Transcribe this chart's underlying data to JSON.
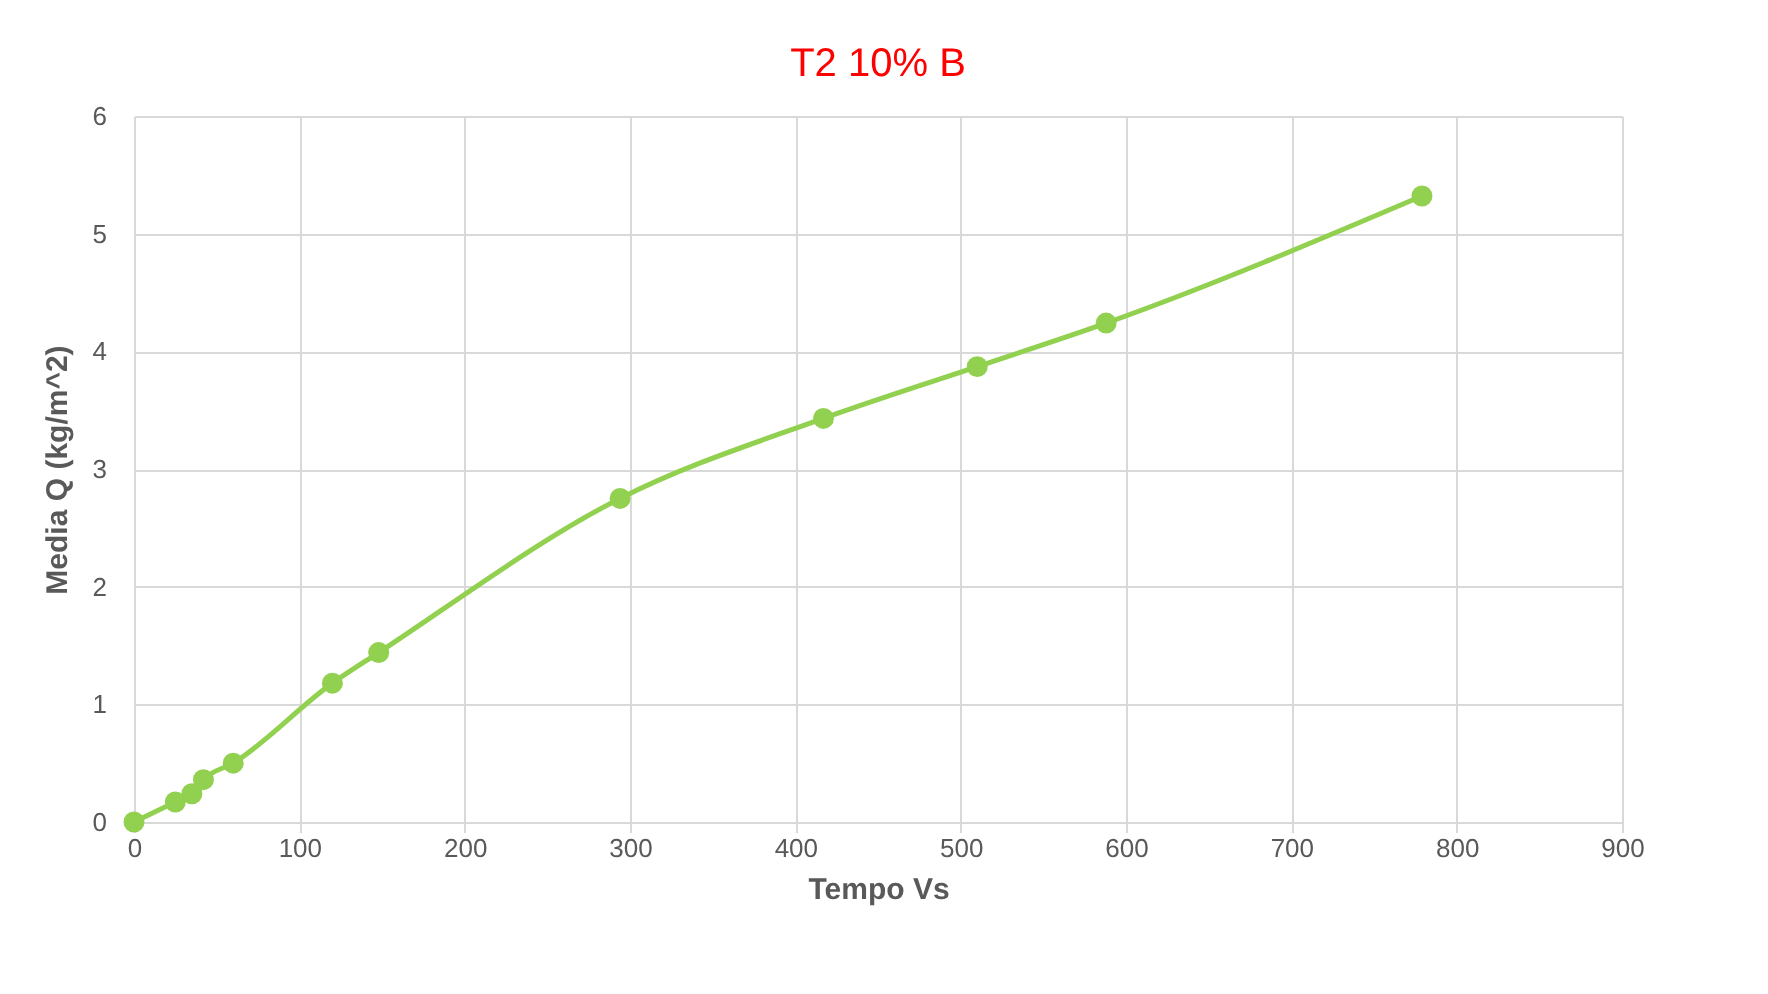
{
  "chart_data": {
    "type": "line",
    "title": "T2 10% B",
    "xlabel": "Tempo Vs",
    "ylabel": "Media Q (kg/m^2)",
    "x": [
      0,
      25,
      35,
      42,
      60,
      120,
      148,
      294,
      417,
      510,
      588,
      779
    ],
    "series": [
      {
        "color": "#92d050",
        "values": [
          0,
          0.17,
          0.24,
          0.36,
          0.5,
          1.18,
          1.44,
          2.75,
          3.43,
          3.87,
          4.24,
          5.32
        ]
      }
    ],
    "xlim": [
      0,
      900
    ],
    "xticks": [
      0,
      100,
      200,
      300,
      400,
      500,
      600,
      700,
      800,
      900
    ],
    "ylim": [
      0,
      6
    ],
    "yticks": [
      0,
      1,
      2,
      3,
      4,
      5,
      6
    ],
    "grid": true,
    "marker": "circle",
    "line_style": "solid",
    "legend": false
  }
}
